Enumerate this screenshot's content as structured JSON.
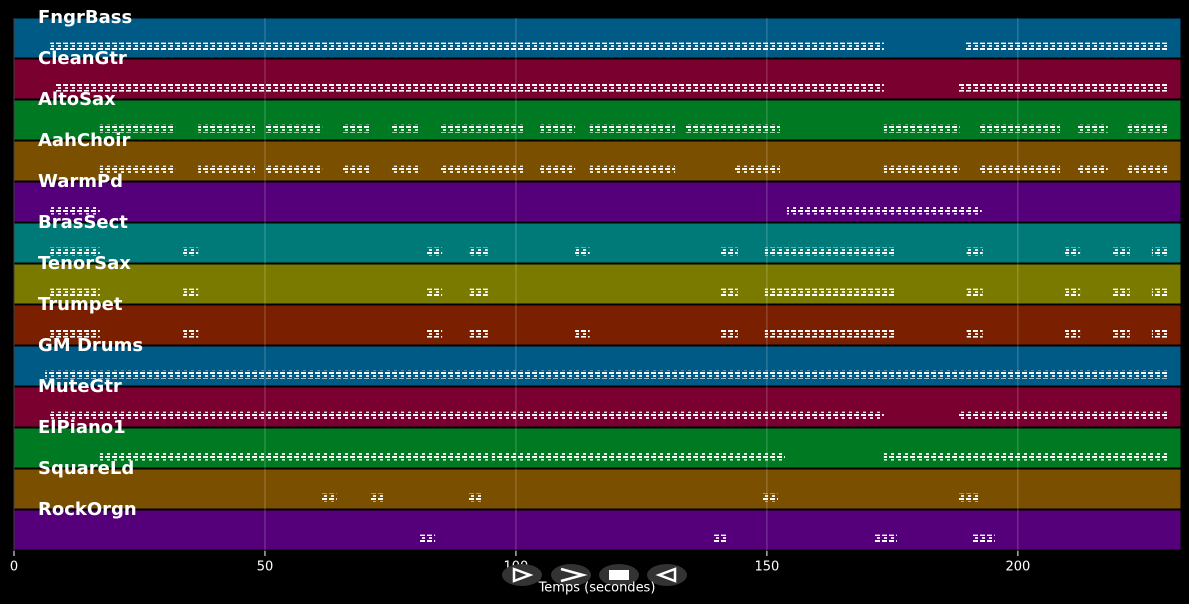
{
  "chart_data": {
    "type": "pianoroll",
    "xlabel": "Temps (secondes)",
    "xlim": [
      0,
      232.5
    ],
    "xticks": [
      0,
      50,
      100,
      150,
      200
    ],
    "grid": true,
    "tracks": [
      {
        "name": "FngrBass",
        "color": "#005a86",
        "notes": [
          [
            7.2,
            173.3
          ],
          [
            189.4,
            229.9
          ]
        ]
      },
      {
        "name": "CleanGtr",
        "color": "#7a0030",
        "notes": [
          [
            8.2,
            173.3
          ],
          [
            188,
            229.9
          ]
        ]
      },
      {
        "name": "AltoSax",
        "color": "#007a22",
        "notes": [
          [
            17.1,
            32.1
          ],
          [
            36.7,
            48
          ],
          [
            50,
            61.4
          ],
          [
            65.3,
            70.9
          ],
          [
            74.9,
            80.9
          ],
          [
            84.9,
            101.8
          ],
          [
            104.8,
            111.8
          ],
          [
            114.7,
            131.7
          ],
          [
            133.7,
            152.6
          ],
          [
            173.3,
            188.4
          ],
          [
            192.4,
            208.4
          ],
          [
            212,
            217.9
          ],
          [
            221.9,
            229.9
          ]
        ]
      },
      {
        "name": "AahChoir",
        "color": "#7a5000",
        "notes": [
          [
            17.1,
            32.1
          ],
          [
            36.7,
            48
          ],
          [
            50,
            61.4
          ],
          [
            65.3,
            70.9
          ],
          [
            74.9,
            80.9
          ],
          [
            84.9,
            101.8
          ],
          [
            104.8,
            111.8
          ],
          [
            114.7,
            131.7
          ],
          [
            143.4,
            152.6
          ],
          [
            173.3,
            188.4
          ],
          [
            192.4,
            208.4
          ],
          [
            212,
            217.9
          ],
          [
            221.9,
            229.9
          ]
        ]
      },
      {
        "name": "WarmPd",
        "color": "#55007a",
        "notes": [
          [
            7.2,
            17.1
          ],
          [
            154,
            192.8
          ]
        ]
      },
      {
        "name": "BrasSect",
        "color": "#007a78",
        "notes": [
          [
            7.2,
            17.1
          ],
          [
            33.7,
            36.7
          ],
          [
            81.9,
            85.3
          ],
          [
            90.8,
            94.4
          ],
          [
            111.8,
            114.7
          ],
          [
            140.6,
            144.2
          ],
          [
            149.6,
            175.5
          ],
          [
            189.8,
            193
          ],
          [
            209.4,
            212.4
          ],
          [
            218.9,
            222.3
          ],
          [
            226.7,
            229.9
          ]
        ]
      },
      {
        "name": "TenorSax",
        "color": "#7a7a00",
        "notes": [
          [
            7.2,
            17.1
          ],
          [
            33.7,
            36.7
          ],
          [
            81.9,
            85.3
          ],
          [
            90.8,
            94.4
          ],
          [
            140.6,
            144.2
          ],
          [
            149.6,
            175.5
          ],
          [
            189.8,
            193
          ],
          [
            209.4,
            212.4
          ],
          [
            218.9,
            222.3
          ],
          [
            226.7,
            229.9
          ]
        ]
      },
      {
        "name": "Trumpet",
        "color": "#7a2000",
        "notes": [
          [
            7.2,
            17.1
          ],
          [
            33.7,
            36.7
          ],
          [
            81.9,
            85.3
          ],
          [
            90.8,
            94.4
          ],
          [
            111.8,
            114.7
          ],
          [
            140.6,
            144.2
          ],
          [
            149.6,
            175.5
          ],
          [
            189.8,
            193
          ],
          [
            209.4,
            212.4
          ],
          [
            218.9,
            222.3
          ],
          [
            226.7,
            229.9
          ]
        ]
      },
      {
        "name": "GM Drums",
        "color": "#005a86",
        "notes": [
          [
            6.2,
            229.9
          ]
        ]
      },
      {
        "name": "MuteGtr",
        "color": "#7a0030",
        "notes": [
          [
            7.2,
            173.3
          ],
          [
            188,
            229.9
          ]
        ]
      },
      {
        "name": "ElPiano1",
        "color": "#007a22",
        "notes": [
          [
            17.1,
            94.8
          ],
          [
            95.2,
            153.6
          ],
          [
            173.3,
            229.9
          ]
        ]
      },
      {
        "name": "SquareLd",
        "color": "#7a5000",
        "notes": [
          [
            61,
            64.3
          ],
          [
            70.9,
            73.9
          ],
          [
            90.4,
            93.4
          ],
          [
            149,
            152.2
          ],
          [
            188,
            192.4
          ]
        ]
      },
      {
        "name": "RockOrgn",
        "color": "#55007a",
        "notes": [
          [
            80.9,
            83.9
          ],
          [
            139.4,
            142.2
          ],
          [
            171.5,
            175.9
          ],
          [
            191,
            195.4
          ]
        ]
      }
    ]
  }
}
